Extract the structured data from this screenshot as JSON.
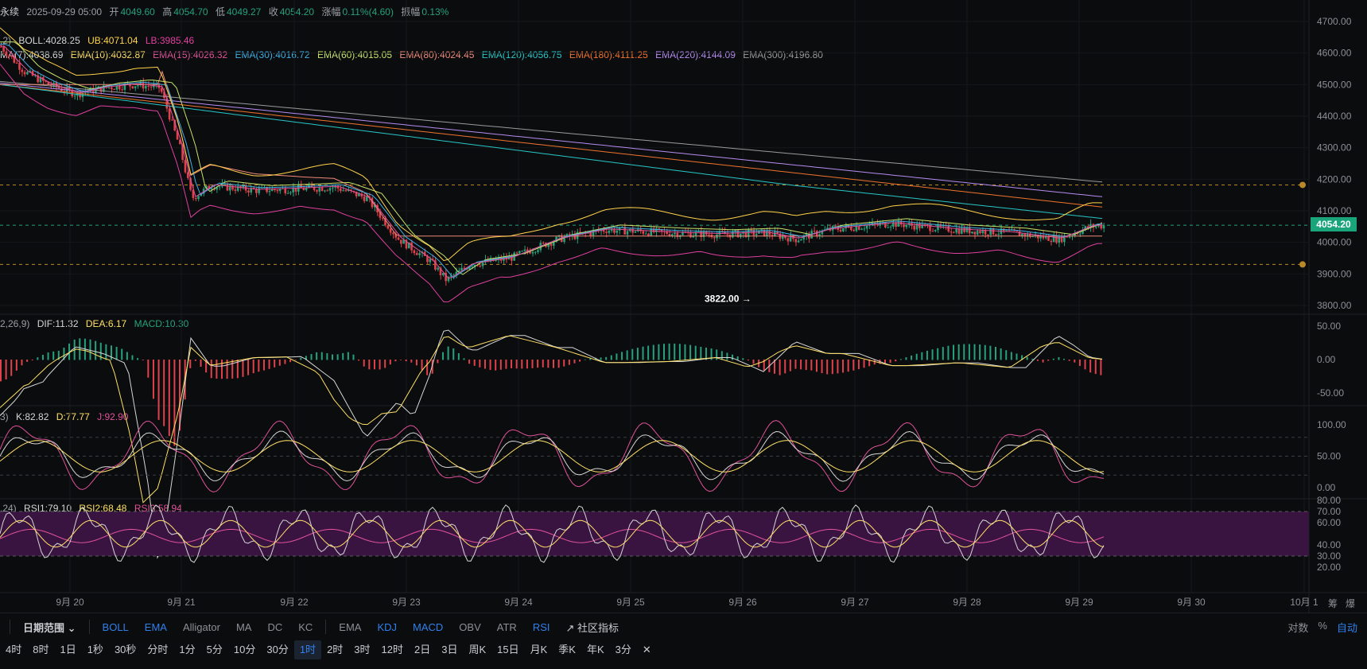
{
  "header": {
    "symbol": "永续",
    "datetime": "2025-09-29 05:00",
    "open_label": "开",
    "open": "4049.60",
    "high_label": "高",
    "high": "4054.70",
    "low_label": "低",
    "low": "4049.27",
    "close_label": "收",
    "close": "4054.20",
    "change_label": "涨幅",
    "change": "0.11%(4.60)",
    "amp_label": "振幅",
    "amp": "0.13%"
  },
  "ind_main": {
    "prefix": ",2)",
    "boll": "BOLL:4028.25",
    "ub": "UB:4071.04",
    "lb": "LB:3985.46",
    "ma7": "MA(7):4038.69",
    "ema10": "EMA(10):4032.87",
    "ema15": "EMA(15):4026.32",
    "ema30": "EMA(30):4016.72",
    "ema60": "EMA(60):4015.05",
    "ema80": "EMA(80):4024.45",
    "ema120": "EMA(120):4056.75",
    "ema180": "EMA(180):4111.25",
    "ema220": "EMA(220):4144.09",
    "ema300": "EMA(300):4196.80"
  },
  "ind_macd": {
    "prefix": "2,26,9)",
    "dif": "DIF:11.32",
    "dea": "DEA:6.17",
    "macd": "MACD:10.30"
  },
  "ind_kdj": {
    "prefix": "3)",
    "k": "K:82.82",
    "d": "D:77.77",
    "j": "J:92.90"
  },
  "ind_rsi": {
    "prefix": ",24)",
    "rsi1": "RSI1:79.10",
    "rsi2": "RSI2:68.48",
    "rsi3": "RSI3:58.94"
  },
  "price_axis": [
    "4700.00",
    "4600.00",
    "4500.00",
    "4400.00",
    "4300.00",
    "4200.00",
    "4100.00",
    "4000.00",
    "3900.00",
    "3800.00"
  ],
  "current_price": "4054.20",
  "low_marker": "3822.00",
  "macd_axis": [
    "50.00",
    "0.00",
    "-50.00"
  ],
  "kdj_axis": [
    "100.00",
    "50.00",
    "0.00"
  ],
  "rsi_axis": [
    "80.00",
    "70.00",
    "60.00",
    "40.00",
    "30.00",
    "20.00"
  ],
  "date_labels": [
    "9月 20",
    "9月 21",
    "9月 22",
    "9月 23",
    "9月 24",
    "9月 25",
    "9月 26",
    "9月 27",
    "9月 28",
    "9月 29",
    "9月 30",
    "10月 1"
  ],
  "axis_corner": {
    "a": "筹",
    "b": "爆"
  },
  "toolbar": {
    "date_range": "日期范围",
    "indicators_main": [
      "BOLL",
      "EMA",
      "Alligator",
      "MA",
      "DC",
      "KC"
    ],
    "indicators_sub": [
      "EMA",
      "KDJ",
      "MACD",
      "OBV",
      "ATR",
      "RSI"
    ],
    "community": "社区指标",
    "right": [
      "对数",
      "%",
      "自动"
    ]
  },
  "timeframes": [
    "4时",
    "8时",
    "1日",
    "1秒",
    "30秒",
    "分时",
    "1分",
    "5分",
    "10分",
    "30分",
    "1时",
    "2时",
    "3时",
    "12时",
    "2日",
    "3日",
    "周K",
    "15日",
    "月K",
    "季K",
    "年K",
    "3分"
  ],
  "active_timeframe": "1时",
  "colors": {
    "up": "#26a17b",
    "down": "#e0424b",
    "ub": "#ffd24a",
    "lb": "#e040a0",
    "ema10": "#ffe066",
    "ema15": "#e0529a",
    "ema30": "#3fb0e6",
    "ema60": "#c6e36a",
    "ema80": "#f08a7a",
    "ema120": "#28c6c6",
    "ema180": "#f0742c",
    "ema220": "#b58cf0",
    "ema300": "#9a9a9a"
  }
}
